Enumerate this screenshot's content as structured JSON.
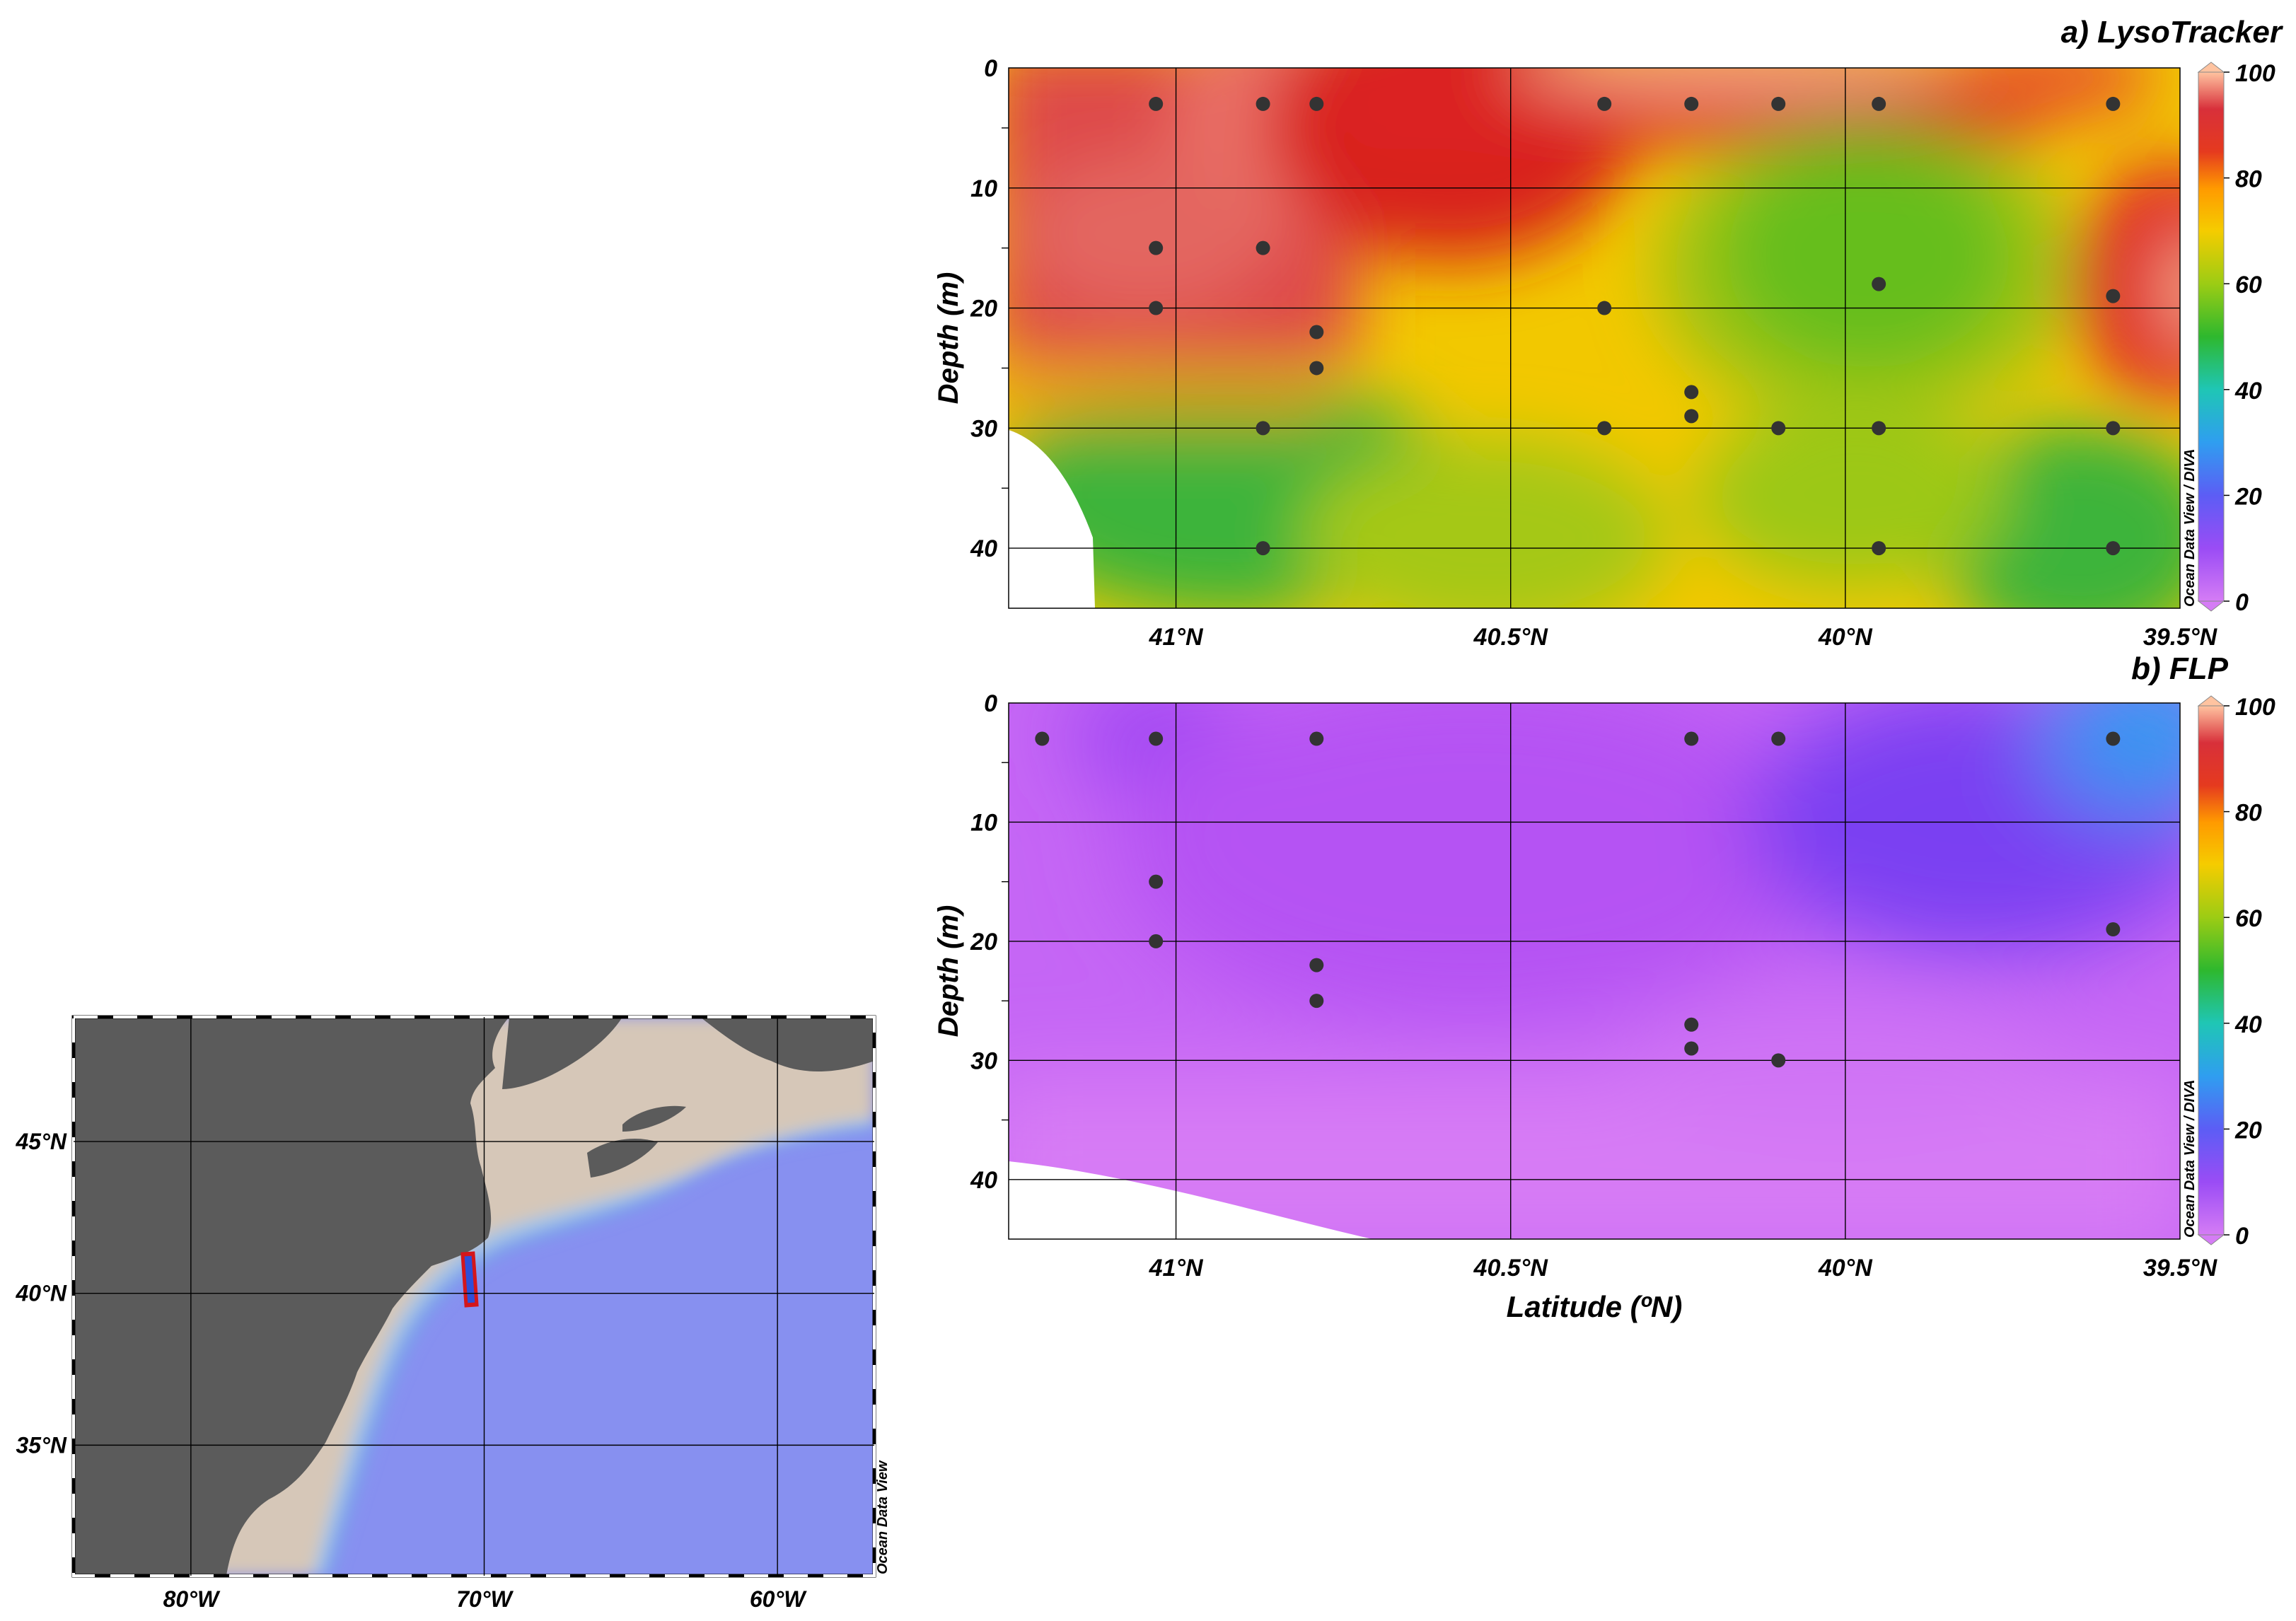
{
  "colors": {
    "colorbar_stops": [
      "#c86af2",
      "#8a3df5",
      "#3a8ff2",
      "#1fc6b5",
      "#2eb82e",
      "#8cc61a",
      "#f5cc00",
      "#ff9a00",
      "#e53a1f",
      "#cc1f26",
      "#ffc3a0"
    ],
    "data_point": "#333333",
    "land": "#5b5b5b",
    "shelf": "#d6c7b8",
    "ocean_deep": "#8790f0",
    "section_line": "#d4161b",
    "section_fill": "#2e4fd8"
  },
  "chart_data": [
    {
      "id": "lysotracker",
      "type": "heatmap",
      "title": "a) LysoTracker",
      "xlabel": "",
      "ylabel": "Depth (m)",
      "xlim": [
        41.25,
        39.5
      ],
      "ylim": [
        45,
        0
      ],
      "x_ticks": [
        41.0,
        40.5,
        40.0,
        39.5
      ],
      "x_tick_labels": [
        "41°N",
        "40.5°N",
        "40°N",
        "39.5°N"
      ],
      "y_ticks": [
        0,
        10,
        20,
        30,
        40
      ],
      "y_tick_labels": [
        "0",
        "10",
        "20",
        "30",
        "40"
      ],
      "grid": true,
      "colorbar": {
        "min": 0,
        "max": 100,
        "ticks": [
          "0",
          "20",
          "40",
          "60",
          "80",
          "100"
        ]
      },
      "watermark": "Ocean Data View / DIVA",
      "points": [
        {
          "x": 41.03,
          "y": 3,
          "v": 86
        },
        {
          "x": 40.87,
          "y": 3,
          "v": 88
        },
        {
          "x": 40.79,
          "y": 3,
          "v": 85
        },
        {
          "x": 40.36,
          "y": 3,
          "v": 84
        },
        {
          "x": 40.23,
          "y": 3,
          "v": 86
        },
        {
          "x": 40.1,
          "y": 3,
          "v": 88
        },
        {
          "x": 39.95,
          "y": 3,
          "v": 80
        },
        {
          "x": 39.6,
          "y": 3,
          "v": 72
        },
        {
          "x": 41.03,
          "y": 15,
          "v": 90
        },
        {
          "x": 40.87,
          "y": 15,
          "v": 88
        },
        {
          "x": 41.03,
          "y": 20,
          "v": 86
        },
        {
          "x": 40.79,
          "y": 22,
          "v": 82
        },
        {
          "x": 40.79,
          "y": 25,
          "v": 78
        },
        {
          "x": 40.36,
          "y": 20,
          "v": 70
        },
        {
          "x": 39.95,
          "y": 18,
          "v": 50
        },
        {
          "x": 39.6,
          "y": 19,
          "v": 88
        },
        {
          "x": 40.23,
          "y": 27,
          "v": 66
        },
        {
          "x": 40.23,
          "y": 29,
          "v": 64
        },
        {
          "x": 40.87,
          "y": 30,
          "v": 55
        },
        {
          "x": 40.36,
          "y": 30,
          "v": 66
        },
        {
          "x": 40.1,
          "y": 30,
          "v": 60
        },
        {
          "x": 39.95,
          "y": 30,
          "v": 58
        },
        {
          "x": 39.6,
          "y": 30,
          "v": 60
        },
        {
          "x": 40.87,
          "y": 40,
          "v": 55
        },
        {
          "x": 39.95,
          "y": 40,
          "v": 64
        },
        {
          "x": 39.6,
          "y": 40,
          "v": 52
        }
      ]
    },
    {
      "id": "flp",
      "type": "heatmap",
      "title": "b) FLP",
      "xlabel": "Latitude (ºN)",
      "ylabel": "Depth (m)",
      "xlim": [
        41.25,
        39.5
      ],
      "ylim": [
        45,
        0
      ],
      "x_ticks": [
        41.0,
        40.5,
        40.0,
        39.5
      ],
      "x_tick_labels": [
        "41°N",
        "40.5°N",
        "40°N",
        "39.5°N"
      ],
      "y_ticks": [
        0,
        10,
        20,
        30,
        40
      ],
      "y_tick_labels": [
        "0",
        "10",
        "20",
        "30",
        "40"
      ],
      "grid": true,
      "colorbar": {
        "min": 0,
        "max": 100,
        "ticks": [
          "0",
          "20",
          "40",
          "60",
          "80",
          "100"
        ]
      },
      "watermark": "Ocean Data View / DIVA",
      "points": [
        {
          "x": 41.2,
          "y": 3,
          "v": 8
        },
        {
          "x": 41.03,
          "y": 3,
          "v": 12
        },
        {
          "x": 40.79,
          "y": 3,
          "v": 8
        },
        {
          "x": 40.23,
          "y": 3,
          "v": 10
        },
        {
          "x": 40.1,
          "y": 3,
          "v": 12
        },
        {
          "x": 39.6,
          "y": 3,
          "v": 22
        },
        {
          "x": 41.03,
          "y": 15,
          "v": 6
        },
        {
          "x": 41.03,
          "y": 20,
          "v": 7
        },
        {
          "x": 40.79,
          "y": 22,
          "v": 8
        },
        {
          "x": 40.79,
          "y": 25,
          "v": 8
        },
        {
          "x": 39.6,
          "y": 19,
          "v": 14
        },
        {
          "x": 40.23,
          "y": 27,
          "v": 5
        },
        {
          "x": 40.23,
          "y": 29,
          "v": 4
        },
        {
          "x": 40.1,
          "y": 30,
          "v": 4
        }
      ]
    },
    {
      "id": "map",
      "type": "map",
      "x_tick_labels": [
        "80°W",
        "70°W",
        "60°W"
      ],
      "y_tick_labels": [
        "45°N",
        "40°N",
        "35°N"
      ],
      "lon_ticks": [
        -80,
        -70,
        -60
      ],
      "lat_ticks": [
        45,
        40,
        35
      ],
      "lonlim": [
        -84,
        -56.7
      ],
      "latlim": [
        30.7,
        49.1
      ],
      "watermark": "Ocean Data View",
      "section": {
        "lon": -70.9,
        "lat_start": 41.5,
        "lat_end": 39.5
      }
    }
  ]
}
